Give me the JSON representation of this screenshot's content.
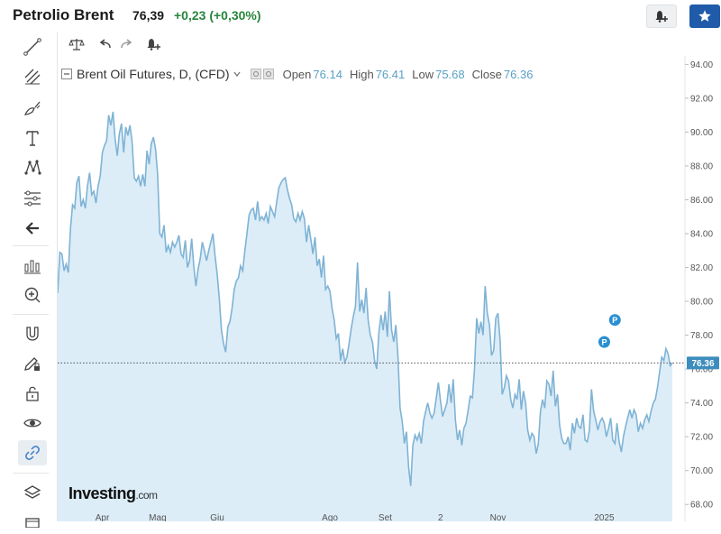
{
  "header": {
    "title": "Petrolio Brent",
    "price": "76,39",
    "change": "+0,23",
    "change_pct": "(+0,30%)",
    "change_color": "#28853d",
    "alert_icon": "bell-plus-icon",
    "star_icon": "star-icon"
  },
  "sidebar": {
    "tools": [
      "trendline-icon",
      "fib-icon",
      "brush-icon",
      "text-icon",
      "pattern-icon",
      "measure-icon",
      "back-arrow-icon",
      "indicator-icon",
      "zoom-in-icon",
      "magnet-icon",
      "pencil-lock-icon",
      "unlock-icon",
      "eye-icon",
      "link-icon",
      "layers-icon"
    ]
  },
  "legend": {
    "symbol": "Brent Oil Futures, D, (CFD)",
    "open_label": "Open",
    "open": "76.14",
    "high_label": "High",
    "high": "76.41",
    "low_label": "Low",
    "low": "75.68",
    "close_label": "Close",
    "close": "76.36"
  },
  "logo": {
    "brand": "Investing",
    "suffix": ".com"
  },
  "chart_data": {
    "type": "area",
    "series": [
      {
        "values": [
          80.5,
          82.9,
          82.8,
          81.8,
          82.2,
          81.7,
          84.3,
          85.7,
          85.5,
          87.0,
          87.4,
          85.6,
          86.0,
          85.5,
          86.8,
          87.6,
          86.3,
          86.5,
          85.8,
          86.8,
          87.4,
          88.8,
          89.2,
          89.5,
          91.0,
          90.4,
          91.2,
          89.6,
          88.6,
          89.9,
          90.5,
          88.8,
          90.3,
          89.8,
          90.4,
          89.4,
          87.3,
          87.1,
          87.4,
          86.8,
          87.5,
          86.8,
          88.9,
          88.1,
          89.3,
          89.7,
          89.0,
          87.5,
          84.0,
          83.8,
          84.5,
          82.9,
          83.3,
          82.9,
          83.5,
          83.2,
          83.5,
          83.9,
          82.8,
          82.6,
          83.6,
          82.0,
          82.4,
          83.7,
          82.1,
          80.9,
          81.9,
          82.5,
          83.5,
          83.0,
          82.4,
          83.0,
          83.5,
          84.0,
          82.7,
          81.6,
          80.2,
          78.3,
          77.5,
          77.0,
          78.5,
          78.8,
          79.6,
          80.7,
          81.2,
          81.4,
          82.1,
          81.8,
          83.0,
          84.0,
          85.1,
          85.4,
          85.5,
          84.8,
          85.9,
          84.8,
          85.0,
          84.8,
          85.2,
          84.6,
          85.6,
          85.3,
          85.0,
          85.9,
          86.7,
          87.0,
          87.2,
          87.3,
          86.6,
          86.1,
          85.7,
          84.9,
          84.7,
          85.2,
          84.8,
          85.3,
          84.9,
          83.5,
          84.5,
          83.7,
          82.8,
          83.8,
          82.1,
          82.5,
          81.4,
          82.7,
          80.7,
          80.9,
          80.6,
          79.6,
          78.9,
          77.8,
          78.1,
          76.5,
          77.2,
          76.4,
          76.7,
          77.5,
          78.4,
          79.1,
          79.7,
          82.3,
          79.4,
          80.1,
          79.3,
          80.8,
          78.9,
          78.0,
          77.6,
          76.5,
          76.0,
          78.1,
          79.2,
          78.3,
          79.4,
          77.9,
          80.6,
          78.3,
          77.6,
          78.6,
          76.7,
          73.7,
          72.9,
          71.6,
          72.3,
          70.2,
          69.1,
          71.5,
          72.1,
          71.8,
          72.2,
          71.6,
          72.9,
          73.5,
          74.0,
          73.4,
          73.1,
          73.4,
          74.3,
          75.2,
          74.1,
          73.2,
          73.6,
          74.0,
          75.1,
          74.0,
          75.4,
          73.0,
          71.8,
          72.4,
          71.5,
          72.5,
          72.8,
          73.6,
          74.4,
          74.3,
          76.0,
          79.0,
          78.1,
          78.8,
          78.0,
          80.9,
          79.3,
          78.6,
          76.8,
          77.1,
          79.0,
          79.3,
          77.7,
          74.5,
          74.9,
          75.6,
          75.3,
          74.2,
          73.7,
          74.5,
          74.2,
          75.4,
          73.6,
          74.7,
          74.0,
          72.4,
          71.8,
          72.2,
          72.0,
          71.0,
          71.6,
          73.5,
          74.2,
          73.7,
          75.3,
          75.1,
          74.4,
          75.9,
          73.8,
          74.5,
          72.7,
          71.9,
          71.6,
          71.6,
          72.0,
          71.2,
          72.8,
          72.2,
          73.1,
          72.6,
          72.5,
          73.3,
          71.8,
          71.7,
          72.4,
          74.8,
          73.5,
          73.0,
          72.4,
          72.9,
          73.1,
          72.8,
          72.0,
          72.5,
          73.1,
          71.8,
          71.6,
          72.8,
          71.7,
          71.1,
          72.0,
          72.6,
          73.1,
          73.6,
          73.1,
          73.6,
          73.3,
          72.3,
          72.8,
          72.5,
          73.0,
          73.3,
          72.9,
          73.5,
          74.0,
          74.2,
          74.9,
          75.8,
          76.7,
          76.5,
          77.2,
          76.9,
          76.2,
          76.36
        ]
      }
    ],
    "ylim": [
      67,
      94.5
    ],
    "yticks": [
      "94.00",
      "92.00",
      "90.00",
      "88.00",
      "86.00",
      "84.00",
      "82.00",
      "80.00",
      "78.00",
      "76.00",
      "74.00",
      "72.00",
      "70.00",
      "68.00"
    ],
    "xticks": [
      {
        "label": "Apr",
        "i": 21
      },
      {
        "label": "Mag",
        "i": 47
      },
      {
        "label": "Giu",
        "i": 75
      },
      {
        "label": "Ago",
        "i": 128
      },
      {
        "label": "Set",
        "i": 154
      },
      {
        "label": "2",
        "i": 180
      },
      {
        "label": "Nov",
        "i": 207
      },
      {
        "label": "2025",
        "i": 257
      }
    ],
    "last_price_label": "76.36",
    "last_price": 76.36,
    "markers": [
      {
        "label": "P",
        "i": 262,
        "y": 78.9
      },
      {
        "label": "P",
        "i": 257,
        "y": 77.6
      }
    ],
    "line_color": "#7fb3d5",
    "fill_color": "#dcedf8",
    "price_label_color": "#3c8dbd",
    "grid": false
  }
}
